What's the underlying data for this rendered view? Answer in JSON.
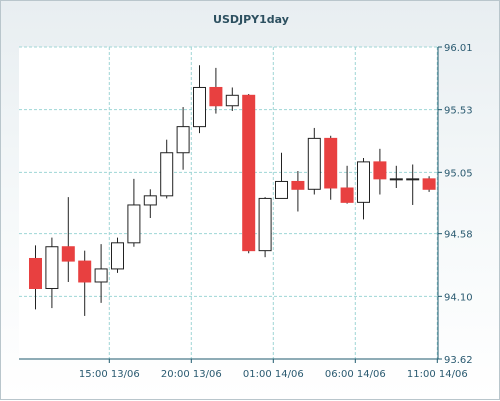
{
  "chart_data": {
    "type": "candlestick",
    "title": "USDJPY1day",
    "ylim": [
      93.62,
      96.01
    ],
    "y_ticks": [
      96.01,
      95.53,
      95.05,
      94.58,
      94.1,
      93.62
    ],
    "y_tick_labels": [
      "96.01",
      "95.53",
      "95.05",
      "94.58",
      "94.10",
      "93.62"
    ],
    "x_tick_labels": [
      "15:00 13/06",
      "20:00 13/06",
      "01:00 14/06",
      "06:00 14/06",
      "11:00 14/06"
    ],
    "x_tick_candle_index": [
      4.5,
      9.5,
      14.5,
      19.5,
      24.5
    ],
    "candle_count": 25,
    "grid": true,
    "colors": {
      "up_fill": "#ffffff",
      "down_fill": "#e84040",
      "outline": "#222222",
      "grid": "#9fd6d6",
      "axis": "#1f5a6e",
      "tick_text": "#2a5a70"
    },
    "candles": [
      {
        "open": 94.39,
        "high": 94.49,
        "low": 94.0,
        "close": 94.16
      },
      {
        "open": 94.16,
        "high": 94.55,
        "low": 94.01,
        "close": 94.48
      },
      {
        "open": 94.48,
        "high": 94.86,
        "low": 94.21,
        "close": 94.37
      },
      {
        "open": 94.37,
        "high": 94.45,
        "low": 93.95,
        "close": 94.21
      },
      {
        "open": 94.21,
        "high": 94.5,
        "low": 94.05,
        "close": 94.31
      },
      {
        "open": 94.31,
        "high": 94.55,
        "low": 94.28,
        "close": 94.51
      },
      {
        "open": 94.51,
        "high": 95.0,
        "low": 94.48,
        "close": 94.8
      },
      {
        "open": 94.8,
        "high": 94.92,
        "low": 94.7,
        "close": 94.87
      },
      {
        "open": 94.87,
        "high": 95.3,
        "low": 94.85,
        "close": 95.2
      },
      {
        "open": 95.2,
        "high": 95.55,
        "low": 95.07,
        "close": 95.4
      },
      {
        "open": 95.4,
        "high": 95.87,
        "low": 95.35,
        "close": 95.7
      },
      {
        "open": 95.7,
        "high": 95.85,
        "low": 95.5,
        "close": 95.56
      },
      {
        "open": 95.56,
        "high": 95.7,
        "low": 95.52,
        "close": 95.64
      },
      {
        "open": 95.64,
        "high": 95.65,
        "low": 94.43,
        "close": 94.45
      },
      {
        "open": 94.45,
        "high": 94.86,
        "low": 94.4,
        "close": 94.85
      },
      {
        "open": 94.85,
        "high": 95.2,
        "low": 94.85,
        "close": 94.98
      },
      {
        "open": 94.98,
        "high": 95.06,
        "low": 94.75,
        "close": 94.92
      },
      {
        "open": 94.92,
        "high": 95.39,
        "low": 94.88,
        "close": 95.31
      },
      {
        "open": 95.31,
        "high": 95.33,
        "low": 94.84,
        "close": 94.93
      },
      {
        "open": 94.93,
        "high": 95.1,
        "low": 94.81,
        "close": 94.82
      },
      {
        "open": 94.82,
        "high": 95.16,
        "low": 94.69,
        "close": 95.13
      },
      {
        "open": 95.13,
        "high": 95.23,
        "low": 94.88,
        "close": 95.0
      },
      {
        "open": 95.0,
        "high": 95.1,
        "low": 94.93,
        "close": 95.0
      },
      {
        "open": 95.0,
        "high": 95.11,
        "low": 94.8,
        "close": 95.0
      },
      {
        "open": 95.0,
        "high": 95.02,
        "low": 94.9,
        "close": 94.92
      }
    ]
  }
}
